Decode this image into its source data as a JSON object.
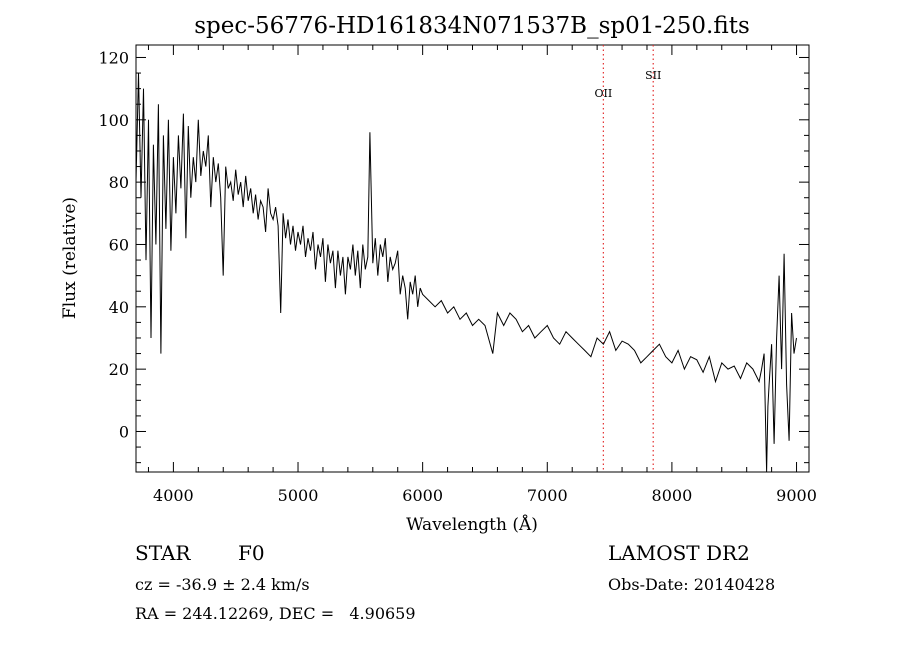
{
  "chart_data": {
    "type": "line",
    "title": "spec-56776-HD161834N071537B_sp01-250.fits",
    "xlabel": "Wavelength (Å)",
    "ylabel": "Flux (relative)",
    "xlim": [
      3700,
      9100
    ],
    "ylim": [
      -13,
      124
    ],
    "xticks": [
      4000,
      5000,
      6000,
      7000,
      8000,
      9000
    ],
    "yticks": [
      0,
      20,
      40,
      60,
      80,
      100,
      120
    ],
    "grid": false,
    "series": [
      {
        "x": [
          3700,
          3720,
          3740,
          3760,
          3780,
          3800,
          3820,
          3840,
          3860,
          3880,
          3900,
          3920,
          3940,
          3960,
          3980,
          4000,
          4020,
          4040,
          4060,
          4080,
          4100,
          4120,
          4140,
          4160,
          4180,
          4200,
          4220,
          4240,
          4260,
          4280,
          4300,
          4320,
          4340,
          4360,
          4380,
          4400,
          4420,
          4440,
          4460,
          4480,
          4500,
          4520,
          4540,
          4560,
          4580,
          4600,
          4620,
          4640,
          4660,
          4680,
          4700,
          4720,
          4740,
          4760,
          4780,
          4800,
          4820,
          4840,
          4861,
          4880,
          4900,
          4920,
          4940,
          4960,
          4980,
          5000,
          5020,
          5040,
          5060,
          5080,
          5100,
          5120,
          5140,
          5160,
          5180,
          5200,
          5220,
          5240,
          5260,
          5280,
          5300,
          5320,
          5340,
          5360,
          5380,
          5400,
          5420,
          5440,
          5460,
          5480,
          5500,
          5520,
          5540,
          5560,
          5577,
          5600,
          5620,
          5640,
          5660,
          5680,
          5700,
          5720,
          5740,
          5760,
          5780,
          5800,
          5820,
          5840,
          5860,
          5880,
          5900,
          5920,
          5940,
          5960,
          5980,
          6000,
          6050,
          6100,
          6150,
          6200,
          6250,
          6300,
          6350,
          6400,
          6450,
          6500,
          6563,
          6600,
          6650,
          6700,
          6750,
          6800,
          6850,
          6900,
          6950,
          7000,
          7050,
          7100,
          7150,
          7200,
          7250,
          7300,
          7350,
          7400,
          7450,
          7500,
          7550,
          7600,
          7650,
          7700,
          7750,
          7800,
          7850,
          7900,
          7950,
          8000,
          8050,
          8100,
          8150,
          8200,
          8250,
          8300,
          8350,
          8400,
          8450,
          8500,
          8550,
          8600,
          8650,
          8700,
          8720,
          8740,
          8760,
          8770,
          8780,
          8800,
          8820,
          8840,
          8860,
          8880,
          8900,
          8920,
          8940,
          8960,
          8980,
          9000
        ],
        "y": [
          80,
          115,
          75,
          110,
          55,
          100,
          30,
          92,
          60,
          105,
          25,
          95,
          65,
          100,
          58,
          88,
          70,
          95,
          78,
          102,
          62,
          98,
          75,
          88,
          80,
          100,
          82,
          90,
          85,
          95,
          72,
          88,
          80,
          86,
          75,
          50,
          85,
          78,
          80,
          74,
          84,
          76,
          80,
          72,
          82,
          74,
          78,
          70,
          76,
          68,
          74,
          72,
          64,
          78,
          70,
          68,
          72,
          66,
          38,
          70,
          62,
          68,
          60,
          66,
          58,
          64,
          60,
          66,
          56,
          62,
          58,
          64,
          52,
          60,
          56,
          62,
          48,
          60,
          54,
          58,
          46,
          58,
          50,
          56,
          44,
          56,
          52,
          60,
          50,
          58,
          46,
          60,
          52,
          56,
          96,
          54,
          62,
          50,
          60,
          56,
          62,
          48,
          56,
          52,
          54,
          58,
          44,
          50,
          46,
          36,
          48,
          44,
          50,
          40,
          46,
          44,
          42,
          40,
          42,
          38,
          40,
          36,
          38,
          34,
          36,
          34,
          25,
          38,
          34,
          38,
          36,
          32,
          34,
          30,
          32,
          34,
          30,
          28,
          32,
          30,
          28,
          26,
          24,
          30,
          28,
          32,
          26,
          29,
          28,
          26,
          22,
          24,
          26,
          28,
          24,
          22,
          26,
          20,
          24,
          23,
          19,
          24,
          16,
          22,
          20,
          21,
          17,
          22,
          20,
          16,
          20,
          25,
          -13,
          8,
          15,
          28,
          -4,
          30,
          50,
          20,
          57,
          15,
          -3,
          38,
          25,
          30
        ]
      }
    ],
    "annotations": [
      {
        "label": "OII",
        "x": 7450
      },
      {
        "label": "SII",
        "x": 7850
      }
    ]
  },
  "info": {
    "object_type": "STAR",
    "spectral_class": "F0",
    "survey": "LAMOST DR2",
    "redshift": "cz = -36.9 ± 2.4 km/s",
    "obs_date": "Obs-Date: 20140428",
    "coordinates": "RA = 244.12269, DEC =   4.90659"
  },
  "colors": {
    "spectrum": "#000000",
    "annotation_line": "#e33030",
    "axes": "#000000",
    "background": "#ffffff"
  }
}
